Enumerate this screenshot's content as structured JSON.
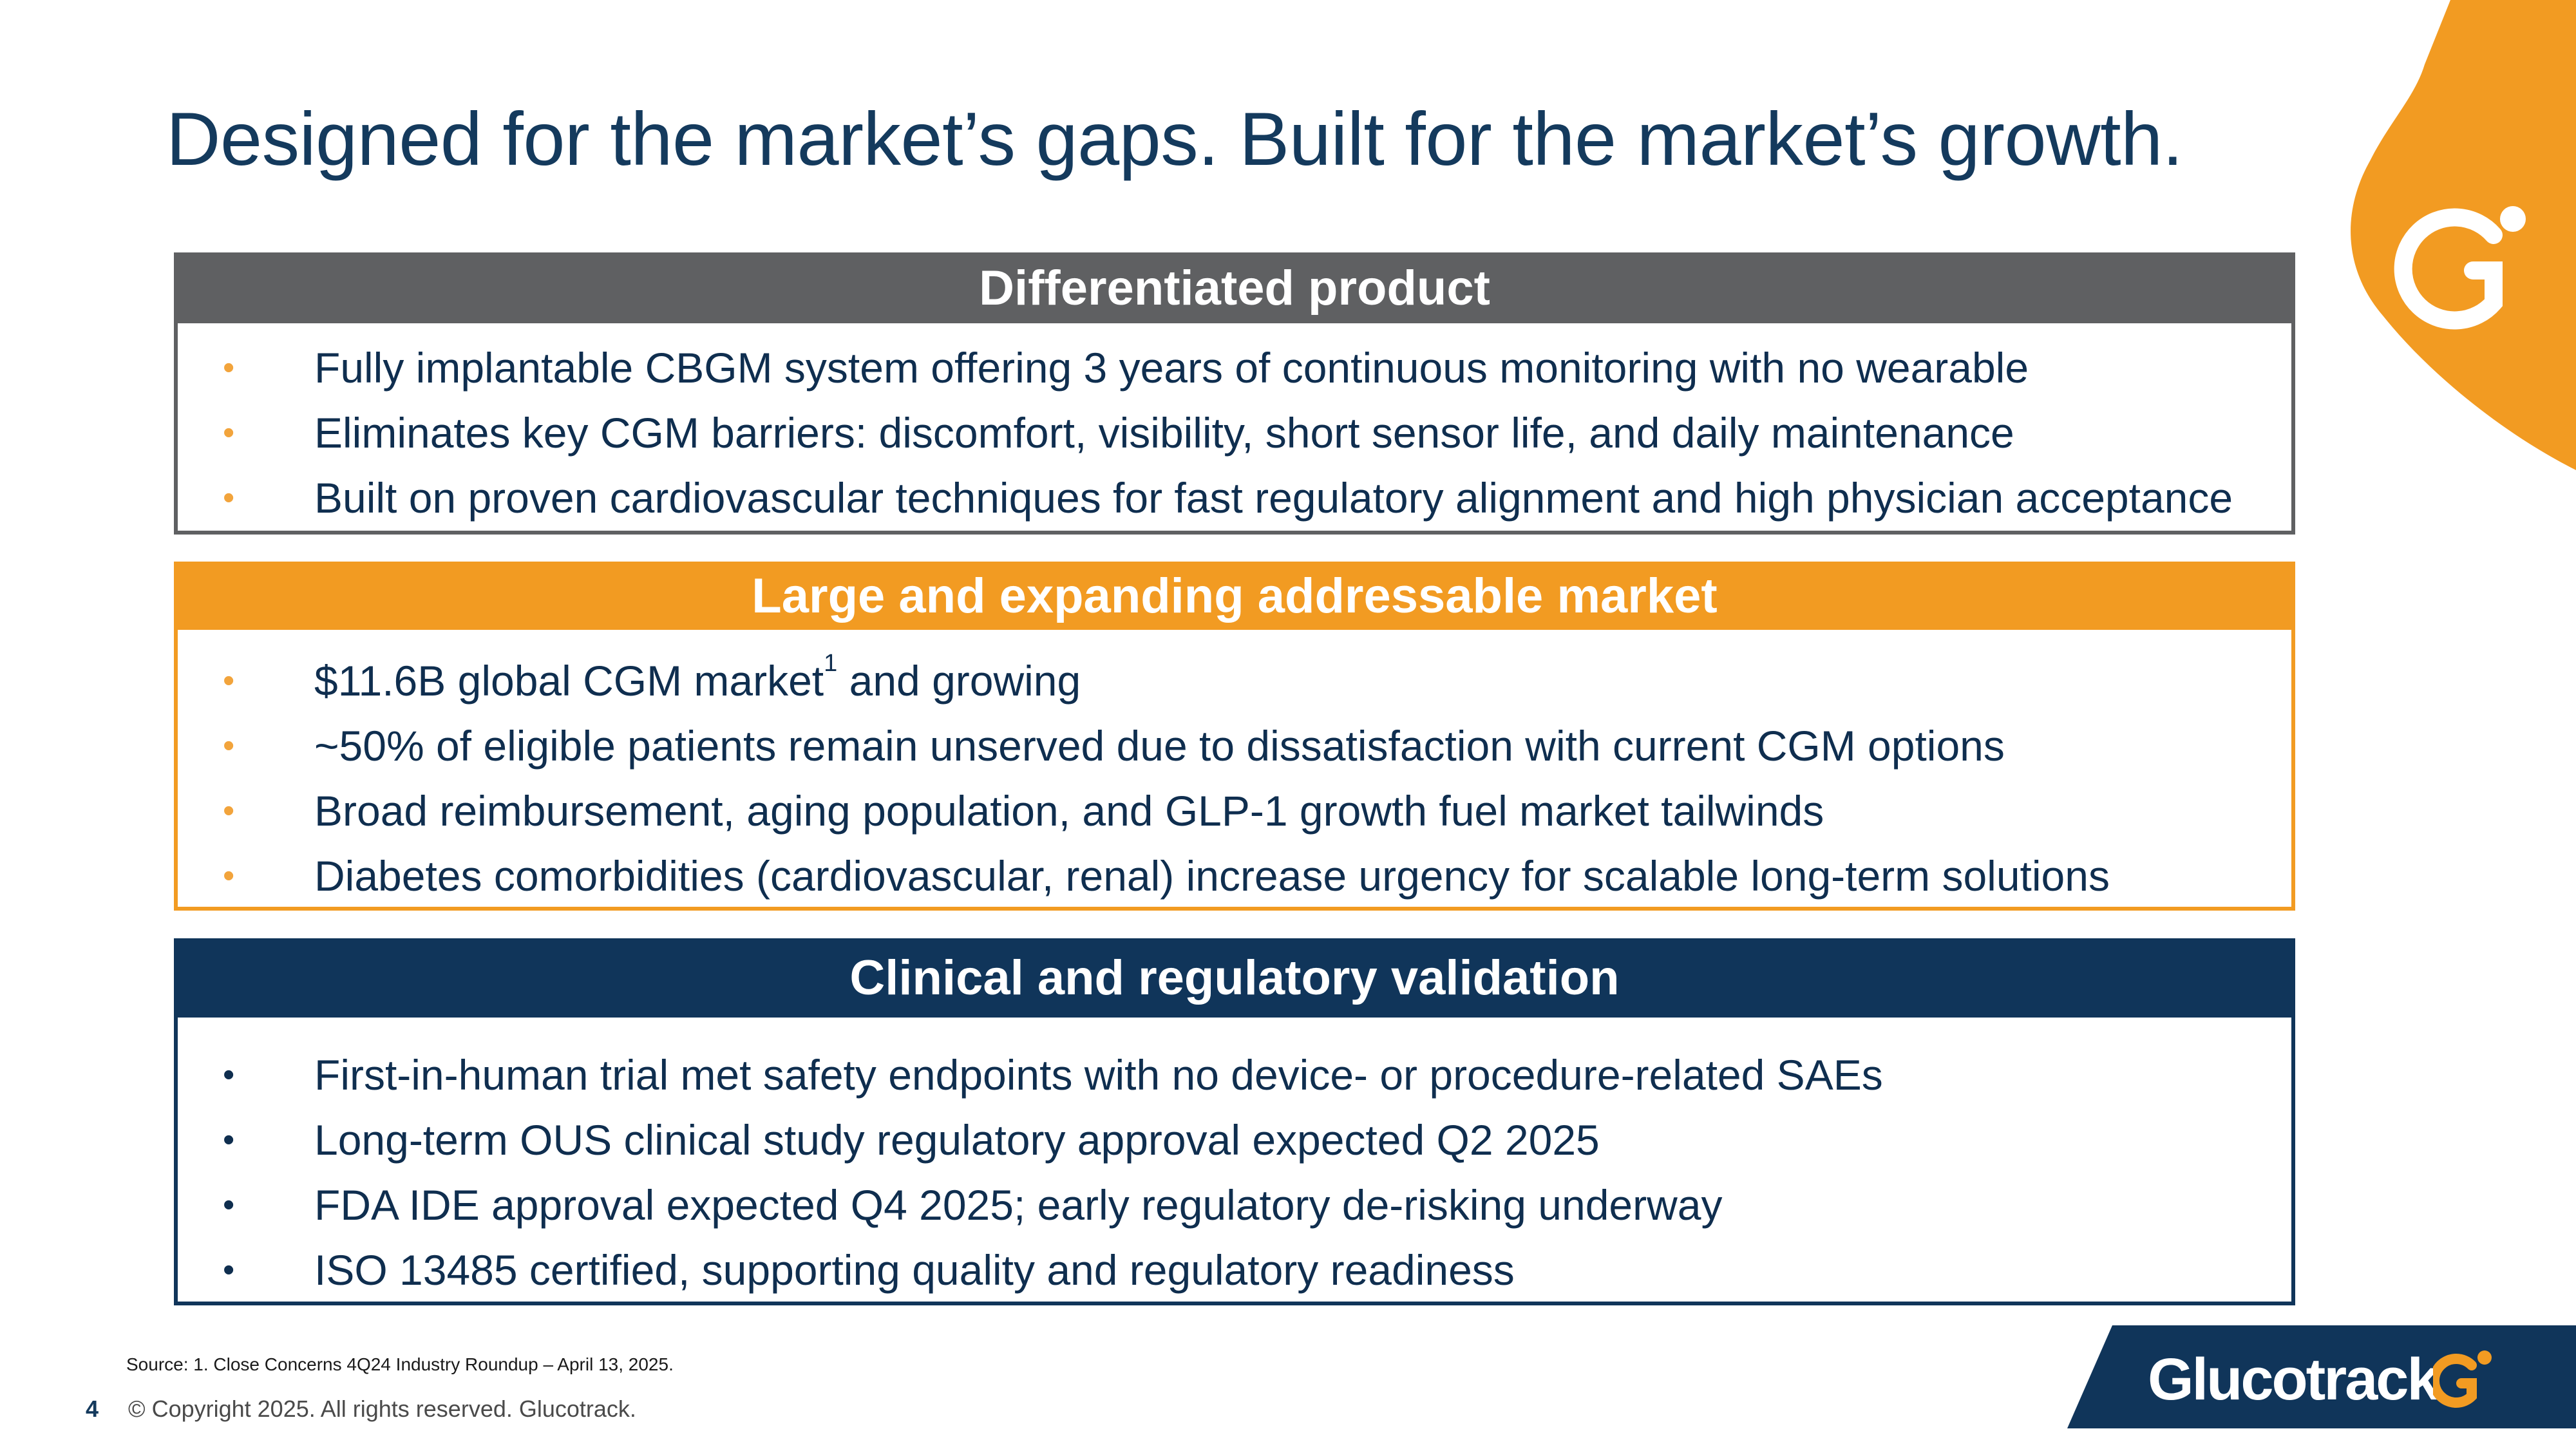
{
  "slide": {
    "title": "Designed for the market’s gaps. Built for the market’s growth.",
    "page_number": "4",
    "copyright": "© Copyright 2025. All rights reserved. Glucotrack.",
    "source": "Source: 1. Close Concerns 4Q24 Industry Roundup – April 13, 2025."
  },
  "brand": {
    "name": "Glucotrack",
    "orange": "#f29b22",
    "navy": "#10355a",
    "gray": "#5f6062"
  },
  "sections": [
    {
      "header": "Differentiated product",
      "bullets": [
        "Fully implantable CBGM system offering 3 years of continuous monitoring with no wearable",
        "Eliminates key CGM barriers: discomfort, visibility, short sensor life, and daily maintenance",
        "Built on proven cardiovascular techniques for fast regulatory alignment and high physician acceptance"
      ]
    },
    {
      "header": "Large and expanding addressable market",
      "bullets": [
        {
          "text": "$11.6B global CGM market",
          "sup": "1",
          "tail": " and growing"
        },
        "~50% of eligible patients remain unserved due to dissatisfaction with current CGM options",
        "Broad reimbursement, aging population, and GLP-1 growth fuel market tailwinds",
        "Diabetes comorbidities (cardiovascular, renal) increase urgency for scalable long-term solutions"
      ]
    },
    {
      "header": "Clinical and regulatory validation",
      "bullets": [
        "First-in-human trial met safety endpoints with no device- or procedure-related SAEs",
        "Long-term OUS clinical study regulatory approval expected Q2 2025",
        "FDA IDE approval expected Q4 2025; early regulatory de-risking underway",
        "ISO 13485 certified, supporting quality and regulatory readiness"
      ]
    }
  ],
  "bullet_glyph": "•"
}
